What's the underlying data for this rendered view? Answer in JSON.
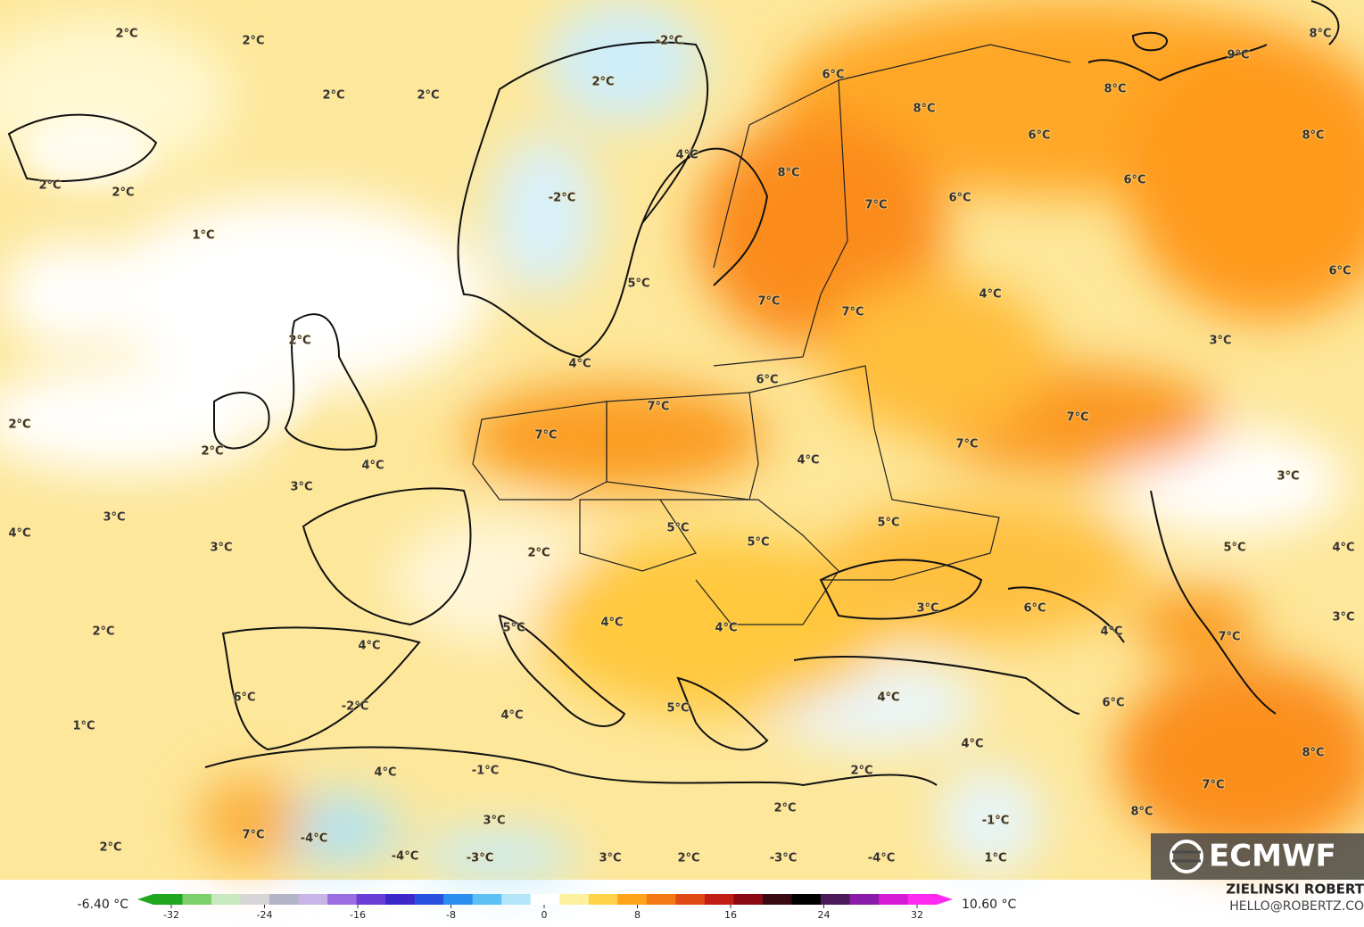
{
  "map": {
    "labels": [
      "2°C",
      "2°C",
      "-2°C",
      "8°C",
      "2°C",
      "2°C",
      "2°C",
      "9°C",
      "6°C",
      "8°C",
      "8°C",
      "6°C",
      "8°C",
      "2°C",
      "2°C",
      "4°C",
      "8°C",
      "-2°C",
      "6°C",
      "6°C",
      "7°C",
      "1°C",
      "5°C",
      "6°C",
      "7°C",
      "4°C",
      "7°C",
      "2°C",
      "3°C",
      "4°C",
      "6°C",
      "2°C",
      "7°C",
      "7°C",
      "7°C",
      "7°C",
      "2°C",
      "4°C",
      "4°C",
      "3°C",
      "3°C",
      "3°C",
      "4°C",
      "5°C",
      "5°C",
      "5°C",
      "3°C",
      "2°C",
      "5°C",
      "4°C",
      "3°C",
      "6°C",
      "4°C",
      "5°C",
      "4°C",
      "4°C",
      "3°C",
      "2°C",
      "4°C",
      "7°C",
      "6°C",
      "4°C",
      "6°C",
      "-2°C",
      "1°C",
      "4°C",
      "5°C",
      "4°C",
      "8°C",
      "4°C",
      "-1°C",
      "2°C",
      "7°C",
      "2°C",
      "3°C",
      "-1°C",
      "8°C",
      "7°C",
      "-4°C",
      "2°C",
      "-4°C",
      "-3°C",
      "3°C",
      "2°C",
      "-3°C",
      "-4°C",
      "1°C"
    ]
  },
  "colorbar": {
    "min_label": "-6.40 °C",
    "max_label": "10.60 °C",
    "ticks": [
      -32,
      -24,
      -16,
      -8,
      0,
      8,
      16,
      24,
      32
    ],
    "colors": [
      "#1fa81f",
      "#7ccf6a",
      "#c8e8c0",
      "#d6d6d6",
      "#b4b4c8",
      "#c8b4e6",
      "#9a6ee0",
      "#6a3cd8",
      "#3c28c8",
      "#2a50e0",
      "#2a8ef0",
      "#5cc0f5",
      "#b4e6fa",
      "#ffffff",
      "#fff0a0",
      "#ffd24a",
      "#ffa31a",
      "#f57a14",
      "#e04a14",
      "#c01e14",
      "#8c0a14",
      "#3a0a14",
      "#000000",
      "#4a1a5a",
      "#8a1aa8",
      "#d41ad4",
      "#ff2af0"
    ]
  },
  "credit": {
    "name": "ZIELINSKI ROBERT",
    "email": "HELLO@ROBERTZ.CO"
  },
  "logo": "ECMWF"
}
